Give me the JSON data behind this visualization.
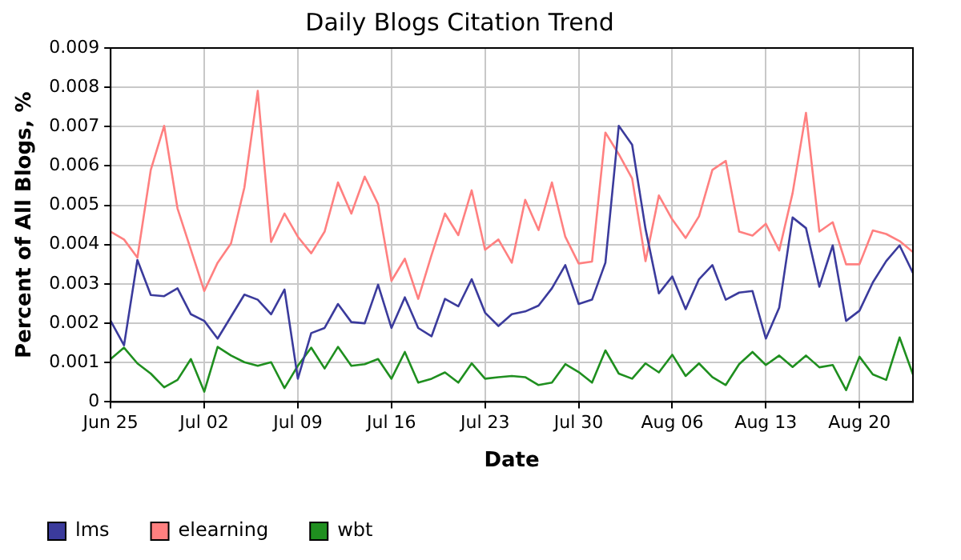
{
  "chart_data": {
    "type": "line",
    "title": "Daily Blogs Citation Trend",
    "xlabel": "Date",
    "ylabel": "Percent of All Blogs, %",
    "x": [
      "--06-25",
      "--06-26",
      "--06-27",
      "--06-28",
      "--06-29",
      "--06-30",
      "--07-01",
      "--07-02",
      "--07-03",
      "--07-04",
      "--07-05",
      "--07-06",
      "--07-07",
      "--07-08",
      "--07-09",
      "--07-10",
      "--07-11",
      "--07-12",
      "--07-13",
      "--07-14",
      "--07-15",
      "--07-16",
      "--07-17",
      "--07-18",
      "--07-19",
      "--07-20",
      "--07-21",
      "--07-22",
      "--07-23",
      "--07-24",
      "--07-25",
      "--07-26",
      "--07-27",
      "--07-28",
      "--07-29",
      "--07-30",
      "--07-31",
      "--08-01",
      "--08-02",
      "--08-03",
      "--08-04",
      "--08-05",
      "--08-06",
      "--08-07",
      "--08-08",
      "--08-09",
      "--08-10",
      "--08-11",
      "--08-12",
      "--08-13",
      "--08-14",
      "--08-15",
      "--08-16",
      "--08-17",
      "--08-18",
      "--08-19",
      "--08-20",
      "--08-21",
      "--08-22",
      "--08-23",
      "--08-24"
    ],
    "series": [
      {
        "name": "lms",
        "color": "#3b3b9c",
        "values": [
          0.00206,
          0.00144,
          0.00361,
          0.00272,
          0.00269,
          0.00289,
          0.00223,
          0.00206,
          0.00161,
          0.00217,
          0.00273,
          0.0026,
          0.00223,
          0.00286,
          0.00059,
          0.00175,
          0.00188,
          0.00249,
          0.00203,
          0.002,
          0.00298,
          0.00188,
          0.00266,
          0.00188,
          0.00167,
          0.00262,
          0.00243,
          0.00312,
          0.00227,
          0.00193,
          0.00223,
          0.0023,
          0.00245,
          0.00289,
          0.00348,
          0.00249,
          0.0026,
          0.00354,
          0.00702,
          0.00654,
          0.0044,
          0.00276,
          0.00319,
          0.00236,
          0.00312,
          0.00348,
          0.0026,
          0.00278,
          0.00282,
          0.00161,
          0.0024,
          0.00469,
          0.00442,
          0.00293,
          0.00398,
          0.00206,
          0.00232,
          0.00304,
          0.00358,
          0.00398,
          0.00328
        ]
      },
      {
        "name": "elearning",
        "color": "#ff8080",
        "values": [
          0.00433,
          0.00413,
          0.00367,
          0.0059,
          0.00702,
          0.00492,
          0.00387,
          0.00282,
          0.00354,
          0.00403,
          0.00545,
          0.00791,
          0.00407,
          0.00479,
          0.0042,
          0.00378,
          0.00433,
          0.00558,
          0.00479,
          0.00573,
          0.00503,
          0.00308,
          0.00364,
          0.00262,
          0.00374,
          0.00479,
          0.00424,
          0.00538,
          0.00387,
          0.00413,
          0.00354,
          0.00514,
          0.00437,
          0.00558,
          0.0042,
          0.00352,
          0.00357,
          0.00685,
          0.0063,
          0.00568,
          0.00358,
          0.00525,
          0.00464,
          0.00417,
          0.00472,
          0.0059,
          0.00613,
          0.00433,
          0.00423,
          0.00453,
          0.00385,
          0.00531,
          0.00735,
          0.00433,
          0.00457,
          0.0035,
          0.0035,
          0.00436,
          0.00427,
          0.00409,
          0.00381
        ]
      },
      {
        "name": "wbt",
        "color": "#1f8f1f",
        "values": [
          0.00109,
          0.00138,
          0.00098,
          0.00072,
          0.00037,
          0.00056,
          0.00109,
          0.00026,
          0.0014,
          0.00118,
          0.00101,
          0.00092,
          0.00101,
          0.00035,
          0.00092,
          0.00138,
          0.00085,
          0.0014,
          0.00092,
          0.00096,
          0.00109,
          0.00059,
          0.00127,
          0.00049,
          0.00059,
          0.00075,
          0.00049,
          0.00098,
          0.00059,
          0.00063,
          0.00066,
          0.00063,
          0.00043,
          0.00049,
          0.00096,
          0.00076,
          0.00049,
          0.00131,
          0.00072,
          0.00059,
          0.00098,
          0.00075,
          0.0012,
          0.00066,
          0.00098,
          0.00063,
          0.00043,
          0.00096,
          0.00127,
          0.00094,
          0.00118,
          0.00089,
          0.00118,
          0.00088,
          0.00094,
          0.0003,
          0.00115,
          0.0007,
          0.00056,
          0.00164,
          0.0007
        ]
      }
    ],
    "xlim": [
      "--06-25",
      "--08-24"
    ],
    "xticks": [
      {
        "value": "--06-25",
        "label": "Jun 25"
      },
      {
        "value": "--07-02",
        "label": "Jul 02"
      },
      {
        "value": "--07-09",
        "label": "Jul 09"
      },
      {
        "value": "--07-16",
        "label": "Jul 16"
      },
      {
        "value": "--07-23",
        "label": "Jul 23"
      },
      {
        "value": "--07-30",
        "label": "Jul 30"
      },
      {
        "value": "--08-06",
        "label": "Aug 06"
      },
      {
        "value": "--08-13",
        "label": "Aug 13"
      },
      {
        "value": "--08-20",
        "label": "Aug 20"
      }
    ],
    "ylim": [
      0,
      0.009
    ],
    "yticks": [
      0,
      0.001,
      0.002,
      0.003,
      0.004,
      0.005,
      0.006,
      0.007,
      0.008,
      0.009
    ],
    "grid": true,
    "legend": "bottom left",
    "marker": "none",
    "line_style": "solid"
  }
}
